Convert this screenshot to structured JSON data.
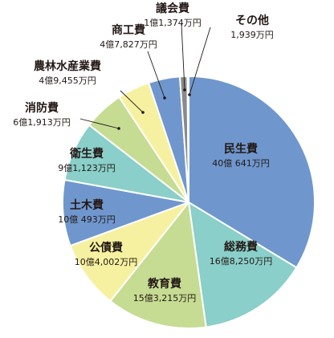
{
  "chart_data": {
    "type": "pie",
    "title": "",
    "unit": "万円",
    "slices": [
      {
        "name": "民生費",
        "value": 400641,
        "value_text": "40億 641万円",
        "color": "#6f97cd"
      },
      {
        "name": "総務費",
        "value": 168250,
        "value_text": "16億8,250万円",
        "color": "#8acfc9"
      },
      {
        "name": "教育費",
        "value": 153215,
        "value_text": "15億3,215万円",
        "color": "#c6dc93"
      },
      {
        "name": "公債費",
        "value": 104002,
        "value_text": "10億4,002万円",
        "color": "#f5f1a0"
      },
      {
        "name": "土木費",
        "value": 100493,
        "value_text": "10億 493万円",
        "color": "#6f97cd"
      },
      {
        "name": "衛生費",
        "value": 91123,
        "value_text": "9億1,123万円",
        "color": "#8acfc9"
      },
      {
        "name": "消防費",
        "value": 61913,
        "value_text": "6億1,913万円",
        "color": "#c6dc93"
      },
      {
        "name": "農林水産業費",
        "value": 49455,
        "value_text": "4億9,455万円",
        "color": "#f5f1a0"
      },
      {
        "name": "商工費",
        "value": 47827,
        "value_text": "4億7,827万円",
        "color": "#6f97cd"
      },
      {
        "name": "議会費",
        "value": 11374,
        "value_text": "1億1,374万円",
        "color": "#8a8a8a"
      },
      {
        "name": "その他",
        "value": 1939,
        "value_text": "1,939万円",
        "color": "#bfbfbf"
      }
    ],
    "start_angle_deg": 0,
    "direction": "clockwise",
    "legend": "none"
  }
}
